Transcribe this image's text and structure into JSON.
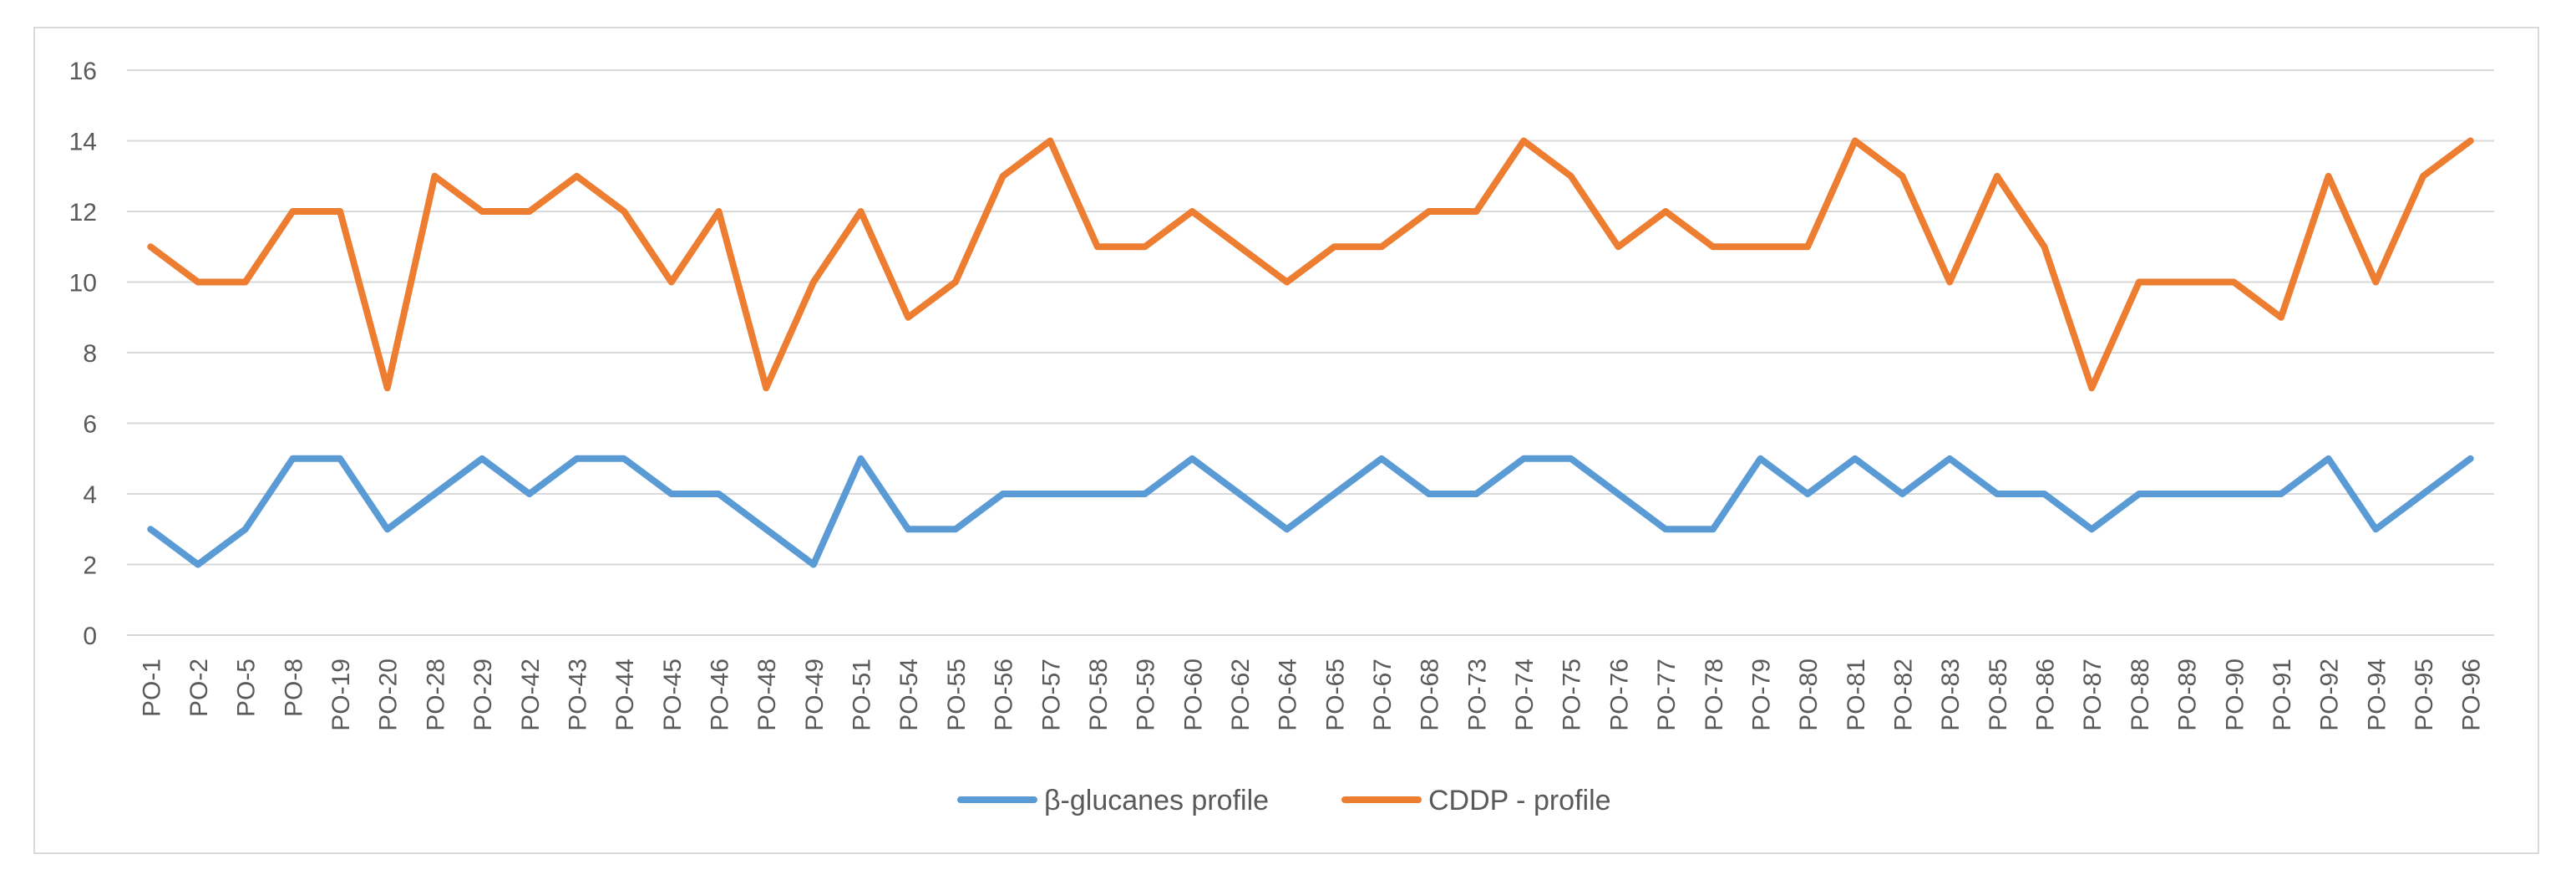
{
  "chart_data": {
    "type": "line",
    "title": "",
    "xlabel": "",
    "ylabel": "",
    "ylim": [
      0,
      16
    ],
    "yticks": [
      "0",
      "2",
      "4",
      "6",
      "8",
      "10",
      "12",
      "14",
      "16"
    ],
    "grid": true,
    "legend_position": "bottom-center",
    "categories": [
      "PO-1",
      "PO-2",
      "PO-5",
      "PO-8",
      "PO-19",
      "PO-20",
      "PO-28",
      "PO-29",
      "PO-42",
      "PO-43",
      "PO-44",
      "PO-45",
      "PO-46",
      "PO-48",
      "PO-49",
      "PO-51",
      "PO-54",
      "PO-55",
      "PO-56",
      "PO-57",
      "PO-58",
      "PO-59",
      "PO-60",
      "PO-62",
      "PO-64",
      "PO-65",
      "PO-67",
      "PO-68",
      "PO-73",
      "PO-74",
      "PO-75",
      "PO-76",
      "PO-77",
      "PO-78",
      "PO-79",
      "PO-80",
      "PO-81",
      "PO-82",
      "PO-83",
      "PO-85",
      "PO-86",
      "PO-87",
      "PO-88",
      "PO-89",
      "PO-90",
      "PO-91",
      "PO-92",
      "PO-94",
      "PO-95",
      "PO-96"
    ],
    "series": [
      {
        "name": "β-glucanes profile",
        "color": "#5b9bd5",
        "values": [
          3,
          2,
          3,
          5,
          5,
          3,
          4,
          5,
          4,
          5,
          5,
          4,
          4,
          3,
          2,
          5,
          3,
          3,
          4,
          4,
          4,
          4,
          5,
          4,
          3,
          4,
          5,
          4,
          4,
          5,
          5,
          4,
          3,
          3,
          5,
          4,
          5,
          4,
          5,
          4,
          4,
          3,
          4,
          4,
          4,
          4,
          5,
          3,
          4,
          5
        ]
      },
      {
        "name": "CDDP - profile",
        "color": "#ed7d31",
        "values": [
          11,
          10,
          10,
          12,
          12,
          7,
          13,
          12,
          12,
          13,
          12,
          10,
          12,
          7,
          10,
          12,
          9,
          10,
          13,
          14,
          11,
          11,
          12,
          11,
          10,
          11,
          11,
          12,
          12,
          14,
          13,
          11,
          12,
          11,
          11,
          11,
          14,
          13,
          10,
          13,
          11,
          7,
          10,
          10,
          10,
          9,
          13,
          10,
          13,
          14
        ]
      }
    ]
  }
}
